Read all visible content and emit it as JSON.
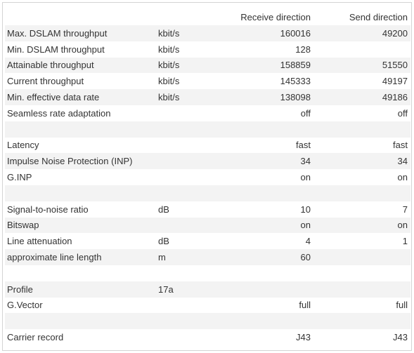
{
  "header": {
    "label": "",
    "unit": "",
    "receive": "Receive direction",
    "send": "Send direction"
  },
  "rows": [
    {
      "label": "Max. DSLAM throughput",
      "unit": "kbit/s",
      "receive": "160016",
      "send": "49200"
    },
    {
      "label": "Min. DSLAM throughput",
      "unit": "kbit/s",
      "receive": "128",
      "send": ""
    },
    {
      "label": "Attainable throughput",
      "unit": "kbit/s",
      "receive": "158859",
      "send": "51550"
    },
    {
      "label": "Current throughput",
      "unit": "kbit/s",
      "receive": "145333",
      "send": "49197"
    },
    {
      "label": "Min. effective data rate",
      "unit": "kbit/s",
      "receive": "138098",
      "send": "49186"
    },
    {
      "label": "Seamless rate adaptation",
      "unit": "",
      "receive": "off",
      "send": "off"
    },
    {
      "label": "",
      "unit": "",
      "receive": "",
      "send": ""
    },
    {
      "label": "Latency",
      "unit": "",
      "receive": "fast",
      "send": "fast"
    },
    {
      "label": "Impulse Noise Protection (INP)",
      "unit": "",
      "receive": "34",
      "send": "34"
    },
    {
      "label": "G.INP",
      "unit": "",
      "receive": "on",
      "send": "on"
    },
    {
      "label": "",
      "unit": "",
      "receive": "",
      "send": ""
    },
    {
      "label": "Signal-to-noise ratio",
      "unit": "dB",
      "receive": "10",
      "send": "7"
    },
    {
      "label": "Bitswap",
      "unit": "",
      "receive": "on",
      "send": "on"
    },
    {
      "label": "Line attenuation",
      "unit": "dB",
      "receive": "4",
      "send": "1"
    },
    {
      "label": "approximate line length",
      "unit": "m",
      "receive": "60",
      "send": ""
    },
    {
      "label": "",
      "unit": "",
      "receive": "",
      "send": ""
    },
    {
      "label": "Profile",
      "unit": "17a",
      "receive": "",
      "send": ""
    },
    {
      "label": "G.Vector",
      "unit": "",
      "receive": "full",
      "send": "full"
    },
    {
      "label": "",
      "unit": "",
      "receive": "",
      "send": ""
    },
    {
      "label": "Carrier record",
      "unit": "",
      "receive": "J43",
      "send": "J43"
    }
  ]
}
